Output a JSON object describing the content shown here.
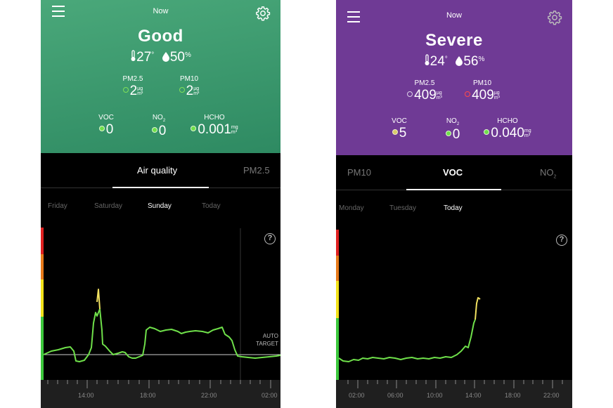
{
  "left": {
    "now_label": "Now",
    "status": "Good",
    "temperature": "27",
    "temperature_unit": "°",
    "humidity": "50",
    "humidity_unit": "%",
    "pm25": {
      "label": "PM2.5",
      "value": "2",
      "unit_top": "µg",
      "unit_bottom": "m³"
    },
    "pm10": {
      "label": "PM10",
      "value": "2",
      "unit_top": "µg",
      "unit_bottom": "m³"
    },
    "voc": {
      "label": "VOC",
      "value": "0"
    },
    "no2": {
      "label": "NO",
      "label_sub": "2",
      "value": "0"
    },
    "hcho": {
      "label": "HCHO",
      "value": "0.001",
      "unit_top": "mg",
      "unit_bottom": "m³"
    },
    "tabs": [
      "Air quality",
      "PM2.5"
    ],
    "active_tab": "Air quality",
    "days": [
      "Friday",
      "Saturday",
      "Sunday",
      "Today"
    ],
    "active_day": "Sunday",
    "help_glyph": "?",
    "auto_target": [
      "AUTO",
      "TARGET"
    ],
    "axis_labels": [
      "14:00",
      "18:00",
      "22:00",
      "02:00"
    ],
    "colors": {
      "header": "#3d9a6e",
      "line": "#6fe04a",
      "peak": "#f0e060"
    }
  },
  "right": {
    "now_label": "Now",
    "status": "Severe",
    "temperature": "24",
    "temperature_unit": "°",
    "humidity": "56",
    "humidity_unit": "%",
    "pm25": {
      "label": "PM2.5",
      "value": "409",
      "unit_top": "µg",
      "unit_bottom": "m³"
    },
    "pm10": {
      "label": "PM10",
      "value": "409",
      "unit_top": "µg",
      "unit_bottom": "m³"
    },
    "voc": {
      "label": "VOC",
      "value": "5"
    },
    "no2": {
      "label": "NO",
      "label_sub": "2",
      "value": "0"
    },
    "hcho": {
      "label": "HCHO",
      "value": "0.040",
      "unit_top": "mg",
      "unit_bottom": "m³"
    },
    "tabs": [
      "PM10",
      "VOC",
      "NO"
    ],
    "tab_no2_sub": "2",
    "active_tab": "VOC",
    "days": [
      "Monday",
      "Tuesday",
      "Today"
    ],
    "active_day": "Today",
    "help_glyph": "?",
    "axis_labels": [
      "02:00",
      "06:00",
      "10:00",
      "14:00",
      "18:00",
      "22:00"
    ],
    "colors": {
      "header": "#6f3a95",
      "line": "#6fe04a",
      "peak": "#f0e060"
    }
  },
  "scale_colors": [
    "#e02020",
    "#e87a1a",
    "#f2e21a",
    "#3cc83c"
  ]
}
